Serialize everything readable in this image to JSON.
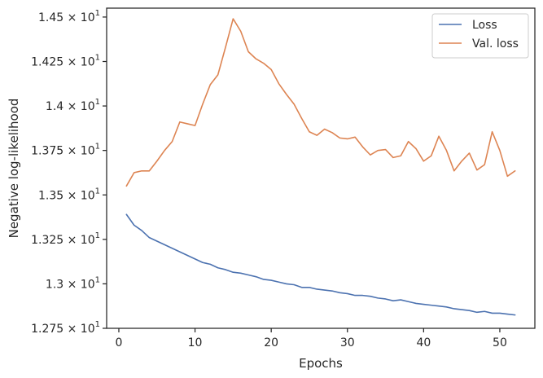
{
  "chart_data": {
    "type": "line",
    "xlabel": "Epochs",
    "ylabel": "Negative log-likelihood",
    "xlim": [
      -1.6,
      54.6
    ],
    "ylim": [
      12.75,
      14.55
    ],
    "x_ticks": [
      0,
      10,
      20,
      30,
      40,
      50
    ],
    "x_tick_labels": [
      "0",
      "10",
      "20",
      "30",
      "40",
      "50"
    ],
    "y_ticks": [
      12.75,
      13.0,
      13.25,
      13.5,
      13.75,
      14.0,
      14.25,
      14.5
    ],
    "y_tick_mantissas": [
      "1.275",
      "1.3",
      "1.325",
      "1.35",
      "1.375",
      "1.4",
      "1.425",
      "1.45"
    ],
    "y_tick_base": "10",
    "y_tick_exponent": "1",
    "grid": false,
    "legend_position": "top-right",
    "series": [
      {
        "name": "Loss",
        "color": "#4c72b0",
        "x": [
          1,
          2,
          3,
          4,
          5,
          6,
          7,
          8,
          9,
          10,
          11,
          12,
          13,
          14,
          15,
          16,
          17,
          18,
          19,
          20,
          21,
          22,
          23,
          24,
          25,
          26,
          27,
          28,
          29,
          30,
          31,
          32,
          33,
          34,
          35,
          36,
          37,
          38,
          39,
          40,
          41,
          42,
          43,
          44,
          45,
          46,
          47,
          48,
          49,
          50,
          51,
          52
        ],
        "values": [
          13.39,
          13.33,
          13.3,
          13.26,
          13.24,
          13.22,
          13.2,
          13.18,
          13.16,
          13.14,
          13.12,
          13.11,
          13.09,
          13.08,
          13.065,
          13.06,
          13.05,
          13.04,
          13.025,
          13.02,
          13.01,
          13.0,
          12.995,
          12.98,
          12.98,
          12.97,
          12.965,
          12.96,
          12.95,
          12.945,
          12.935,
          12.935,
          12.93,
          12.92,
          12.915,
          12.905,
          12.91,
          12.9,
          12.89,
          12.885,
          12.88,
          12.875,
          12.87,
          12.86,
          12.855,
          12.85,
          12.84,
          12.845,
          12.835,
          12.835,
          12.83,
          12.825
        ]
      },
      {
        "name": "Val. loss",
        "color": "#dd8452",
        "x": [
          1,
          2,
          3,
          4,
          5,
          6,
          7,
          8,
          9,
          10,
          11,
          12,
          13,
          14,
          15,
          16,
          17,
          18,
          19,
          20,
          21,
          22,
          23,
          24,
          25,
          26,
          27,
          28,
          29,
          30,
          31,
          32,
          33,
          34,
          35,
          36,
          37,
          38,
          39,
          40,
          41,
          42,
          43,
          44,
          45,
          46,
          47,
          48,
          49,
          50,
          51,
          52
        ],
        "values": [
          13.55,
          13.625,
          13.635,
          13.635,
          13.69,
          13.75,
          13.8,
          13.91,
          13.9,
          13.89,
          14.01,
          14.12,
          14.175,
          14.33,
          14.49,
          14.42,
          14.305,
          14.265,
          14.24,
          14.205,
          14.125,
          14.065,
          14.01,
          13.93,
          13.855,
          13.835,
          13.87,
          13.85,
          13.82,
          13.815,
          13.825,
          13.77,
          13.725,
          13.75,
          13.755,
          13.71,
          13.72,
          13.8,
          13.76,
          13.69,
          13.72,
          13.83,
          13.75,
          13.635,
          13.69,
          13.735,
          13.64,
          13.67,
          13.855,
          13.75,
          13.605,
          13.635
        ]
      }
    ]
  }
}
